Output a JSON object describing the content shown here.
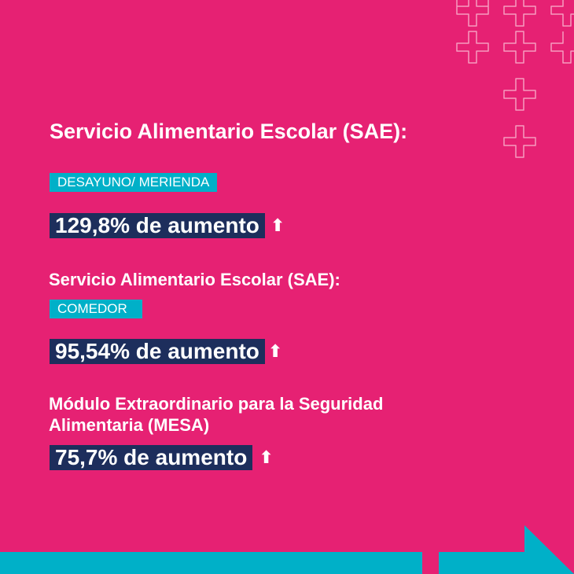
{
  "sections": [
    {
      "title": "Servicio Alimentario Escolar (SAE):",
      "tag": "DESAYUNO/ MERIENDA",
      "stat": "129,8% de aumento"
    },
    {
      "title": "Servicio Alimentario Escolar (SAE):",
      "tag": "COMEDOR",
      "stat": "95,54% de aumento"
    },
    {
      "title_line1": "Módulo Extraordinario para la Seguridad",
      "title_line2": "Alimentaria (MESA)",
      "stat": "75,7% de aumento"
    }
  ],
  "icons": {
    "arrow": "arrow-up-icon",
    "deco": "plus-outline-icon"
  },
  "colors": {
    "background": "#e62173",
    "tag": "#00b0c8",
    "stat": "#1d2e5c",
    "white": "#ffffff"
  }
}
